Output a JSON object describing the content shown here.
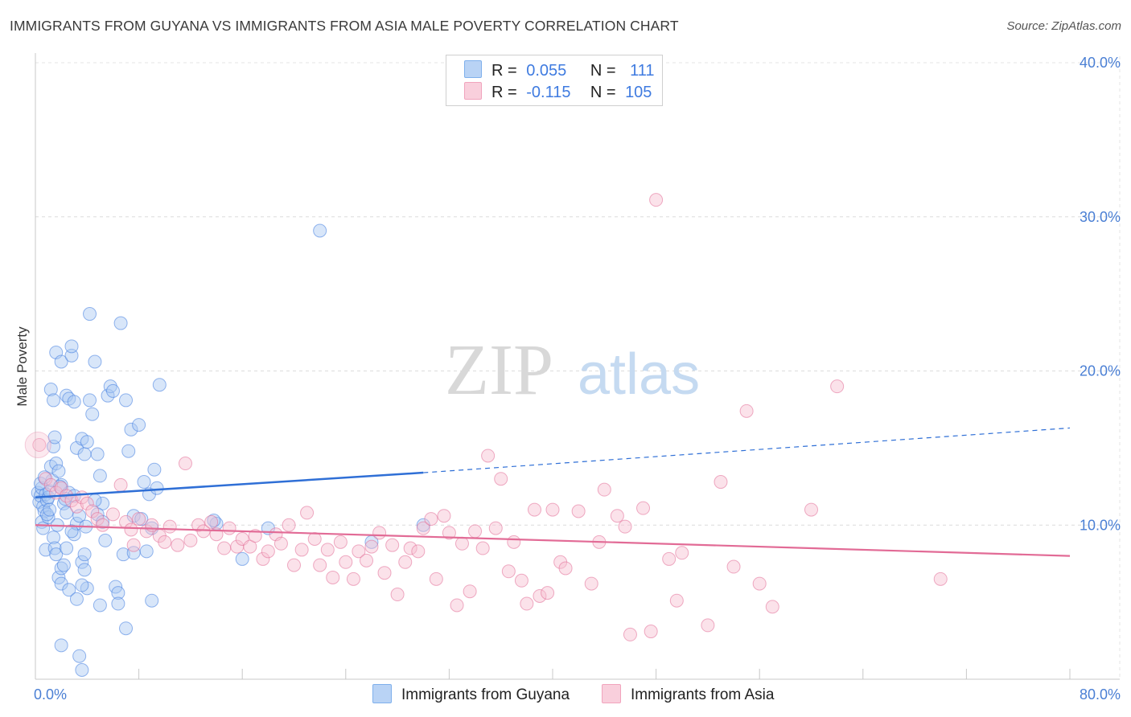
{
  "header": {
    "title": "IMMIGRANTS FROM GUYANA VS IMMIGRANTS FROM ASIA MALE POVERTY CORRELATION CHART",
    "source": "Source: ZipAtlas.com"
  },
  "legend": {
    "r_label": "R =",
    "n_label": "N =",
    "rows": [
      {
        "r": "0.055",
        "n": "111",
        "color": "#7fb0ec",
        "fill": "#b9d3f5"
      },
      {
        "r": "-0.115",
        "n": "105",
        "color": "#f1a4bd",
        "fill": "#f9cfdc"
      }
    ]
  },
  "watermark": {
    "zip": "ZIP",
    "atlas": "atlas"
  },
  "chart_data": {
    "type": "scatter",
    "xlabel": "",
    "ylabel": "Male Poverty",
    "xlim": [
      0,
      80
    ],
    "ylim": [
      0,
      40
    ],
    "x_tick_labels": [
      "0.0%",
      "80.0%"
    ],
    "y_tick_labels": [
      "10.0%",
      "20.0%",
      "30.0%",
      "40.0%"
    ],
    "y_ticks": [
      10,
      20,
      30,
      40
    ],
    "grid": true,
    "series": [
      {
        "name": "Immigrants from Guyana",
        "color": "#3f7be0",
        "fill": "#a9c8f2",
        "trend": {
          "x0": 0,
          "y0": 11.8,
          "x1": 30,
          "y1": 13.4,
          "dash_x1": 80,
          "dash_y1": 16.3
        },
        "points": [
          [
            0.2,
            12.1
          ],
          [
            0.3,
            11.5
          ],
          [
            0.4,
            11.9
          ],
          [
            0.5,
            12.4
          ],
          [
            0.6,
            11.2
          ],
          [
            0.7,
            10.9
          ],
          [
            0.8,
            12.0
          ],
          [
            0.9,
            11.6
          ],
          [
            1.0,
            11.8
          ],
          [
            1.1,
            12.2
          ],
          [
            0.5,
            10.2
          ],
          [
            0.6,
            9.8
          ],
          [
            0.8,
            8.4
          ],
          [
            1.0,
            10.5
          ],
          [
            1.2,
            13.8
          ],
          [
            1.3,
            12.9
          ],
          [
            1.4,
            15.1
          ],
          [
            1.5,
            15.7
          ],
          [
            1.6,
            14.0
          ],
          [
            1.8,
            13.5
          ],
          [
            2.0,
            12.6
          ],
          [
            2.2,
            11.4
          ],
          [
            2.4,
            10.8
          ],
          [
            1.4,
            9.2
          ],
          [
            1.5,
            8.5
          ],
          [
            1.6,
            8.1
          ],
          [
            1.8,
            6.6
          ],
          [
            2.0,
            6.2
          ],
          [
            2.0,
            7.2
          ],
          [
            2.2,
            7.4
          ],
          [
            2.4,
            8.5
          ],
          [
            2.6,
            5.8
          ],
          [
            3.0,
            9.4
          ],
          [
            3.2,
            10.1
          ],
          [
            3.4,
            10.6
          ],
          [
            3.6,
            7.6
          ],
          [
            3.8,
            7.1
          ],
          [
            3.8,
            8.1
          ],
          [
            4.0,
            5.9
          ],
          [
            3.2,
            5.2
          ],
          [
            3.6,
            6.1
          ],
          [
            1.2,
            18.8
          ],
          [
            1.4,
            18.1
          ],
          [
            1.6,
            21.2
          ],
          [
            2.0,
            20.6
          ],
          [
            2.4,
            18.4
          ],
          [
            2.6,
            18.2
          ],
          [
            2.8,
            21.0
          ],
          [
            2.8,
            21.6
          ],
          [
            3.0,
            18.0
          ],
          [
            3.2,
            15.0
          ],
          [
            3.6,
            15.6
          ],
          [
            3.8,
            14.6
          ],
          [
            4.0,
            15.4
          ],
          [
            4.2,
            18.1
          ],
          [
            4.4,
            17.2
          ],
          [
            4.6,
            20.6
          ],
          [
            4.2,
            23.7
          ],
          [
            4.8,
            14.6
          ],
          [
            5.0,
            13.2
          ],
          [
            5.2,
            11.4
          ],
          [
            5.4,
            9.0
          ],
          [
            5.6,
            18.4
          ],
          [
            5.8,
            19.0
          ],
          [
            6.0,
            18.7
          ],
          [
            6.2,
            6.0
          ],
          [
            6.4,
            5.6
          ],
          [
            6.6,
            23.1
          ],
          [
            7.0,
            18.1
          ],
          [
            7.2,
            14.8
          ],
          [
            7.4,
            16.2
          ],
          [
            7.6,
            10.6
          ],
          [
            8.0,
            16.5
          ],
          [
            8.4,
            12.8
          ],
          [
            8.6,
            8.3
          ],
          [
            8.8,
            12.0
          ],
          [
            9.0,
            5.1
          ],
          [
            9.2,
            13.6
          ],
          [
            9.4,
            12.4
          ],
          [
            9.6,
            19.1
          ],
          [
            9.0,
            9.8
          ],
          [
            8.2,
            10.4
          ],
          [
            5.0,
            4.8
          ],
          [
            6.4,
            4.9
          ],
          [
            7.0,
            3.3
          ],
          [
            2.0,
            2.2
          ],
          [
            3.4,
            1.5
          ],
          [
            3.6,
            0.6
          ],
          [
            2.6,
            12.1
          ],
          [
            3.0,
            11.9
          ],
          [
            4.6,
            11.6
          ],
          [
            4.8,
            10.7
          ],
          [
            5.2,
            10.2
          ],
          [
            6.8,
            8.1
          ],
          [
            7.6,
            8.2
          ],
          [
            14.0,
            10.1
          ],
          [
            16.0,
            7.8
          ],
          [
            18.0,
            9.8
          ],
          [
            22.0,
            29.1
          ],
          [
            26.0,
            8.9
          ],
          [
            30.0,
            10.0
          ],
          [
            13.8,
            10.3
          ],
          [
            0.9,
            10.7
          ],
          [
            1.1,
            11.0
          ],
          [
            1.9,
            12.5
          ],
          [
            2.3,
            11.7
          ],
          [
            1.7,
            10.0
          ],
          [
            0.4,
            12.7
          ],
          [
            0.7,
            13.1
          ],
          [
            2.8,
            9.6
          ],
          [
            3.9,
            9.9
          ]
        ]
      },
      {
        "name": "Immigrants from Asia",
        "color": "#e26b96",
        "fill": "#f6bfd0",
        "trend": {
          "x0": 0,
          "y0": 10.0,
          "x1": 80,
          "y1": 8.0
        },
        "points": [
          [
            0.3,
            15.2
          ],
          [
            0.8,
            13.0
          ],
          [
            1.2,
            12.6
          ],
          [
            1.6,
            12.1
          ],
          [
            2.0,
            12.4
          ],
          [
            2.4,
            11.9
          ],
          [
            2.8,
            11.6
          ],
          [
            3.2,
            11.2
          ],
          [
            3.6,
            11.8
          ],
          [
            4.0,
            11.4
          ],
          [
            4.4,
            10.9
          ],
          [
            4.8,
            10.4
          ],
          [
            5.2,
            10.0
          ],
          [
            6.0,
            10.7
          ],
          [
            6.6,
            12.6
          ],
          [
            7.0,
            10.2
          ],
          [
            7.6,
            8.7
          ],
          [
            8.0,
            10.4
          ],
          [
            8.6,
            9.6
          ],
          [
            9.0,
            10.0
          ],
          [
            9.6,
            9.3
          ],
          [
            10.0,
            8.9
          ],
          [
            10.4,
            9.9
          ],
          [
            11.0,
            8.7
          ],
          [
            11.6,
            14.0
          ],
          [
            12.0,
            9.0
          ],
          [
            12.6,
            10.0
          ],
          [
            13.0,
            9.6
          ],
          [
            13.6,
            10.2
          ],
          [
            14.0,
            9.4
          ],
          [
            14.6,
            8.5
          ],
          [
            15.0,
            9.8
          ],
          [
            15.6,
            8.6
          ],
          [
            16.0,
            9.1
          ],
          [
            16.6,
            8.6
          ],
          [
            17.0,
            9.3
          ],
          [
            17.6,
            7.8
          ],
          [
            18.0,
            8.3
          ],
          [
            18.6,
            9.4
          ],
          [
            19.0,
            8.8
          ],
          [
            19.6,
            10.0
          ],
          [
            20.0,
            7.4
          ],
          [
            20.6,
            8.4
          ],
          [
            21.0,
            10.8
          ],
          [
            21.6,
            9.1
          ],
          [
            22.0,
            7.4
          ],
          [
            22.6,
            8.4
          ],
          [
            23.0,
            6.6
          ],
          [
            23.6,
            8.9
          ],
          [
            24.0,
            7.6
          ],
          [
            24.6,
            6.5
          ],
          [
            25.0,
            8.3
          ],
          [
            25.6,
            7.7
          ],
          [
            26.0,
            8.6
          ],
          [
            26.6,
            9.5
          ],
          [
            27.0,
            6.9
          ],
          [
            27.6,
            8.7
          ],
          [
            28.0,
            5.5
          ],
          [
            28.6,
            7.6
          ],
          [
            29.0,
            8.5
          ],
          [
            29.6,
            8.3
          ],
          [
            30.0,
            9.8
          ],
          [
            30.6,
            10.4
          ],
          [
            31.0,
            6.5
          ],
          [
            31.6,
            10.6
          ],
          [
            32.0,
            9.5
          ],
          [
            32.6,
            4.8
          ],
          [
            33.0,
            8.8
          ],
          [
            33.6,
            5.7
          ],
          [
            34.0,
            9.6
          ],
          [
            34.6,
            8.5
          ],
          [
            35.0,
            14.5
          ],
          [
            35.6,
            9.8
          ],
          [
            36.0,
            13.0
          ],
          [
            36.6,
            7.0
          ],
          [
            37.0,
            8.9
          ],
          [
            37.6,
            6.4
          ],
          [
            38.0,
            4.9
          ],
          [
            38.6,
            11.0
          ],
          [
            39.0,
            5.4
          ],
          [
            39.6,
            5.6
          ],
          [
            40.0,
            11.0
          ],
          [
            40.6,
            7.6
          ],
          [
            41.0,
            7.2
          ],
          [
            42.0,
            10.9
          ],
          [
            43.0,
            6.2
          ],
          [
            43.6,
            8.9
          ],
          [
            44.0,
            12.3
          ],
          [
            45.0,
            10.6
          ],
          [
            45.6,
            9.9
          ],
          [
            46.0,
            2.9
          ],
          [
            47.0,
            11.1
          ],
          [
            47.6,
            3.1
          ],
          [
            48.0,
            31.1
          ],
          [
            49.0,
            7.8
          ],
          [
            49.6,
            5.1
          ],
          [
            50.0,
            8.2
          ],
          [
            52.0,
            3.5
          ],
          [
            53.0,
            12.8
          ],
          [
            54.0,
            7.3
          ],
          [
            55.0,
            17.4
          ],
          [
            56.0,
            6.2
          ],
          [
            57.0,
            4.7
          ],
          [
            60.0,
            11.0
          ],
          [
            62.0,
            19.0
          ],
          [
            70.0,
            6.5
          ],
          [
            7.4,
            9.7
          ]
        ]
      }
    ]
  },
  "bottom_legend": [
    "Immigrants from Guyana",
    "Immigrants from Asia"
  ]
}
